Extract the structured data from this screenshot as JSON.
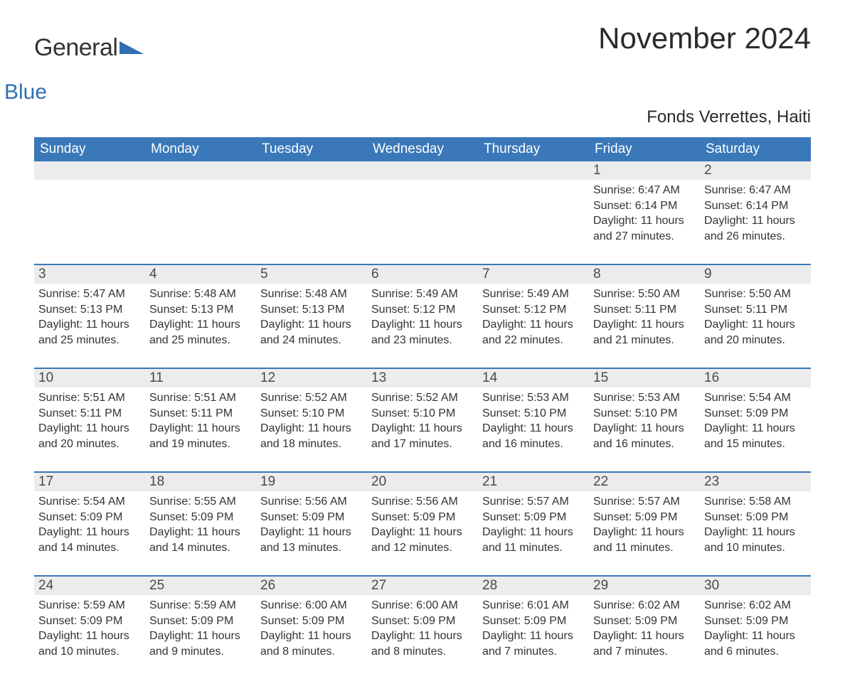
{
  "logo": {
    "main": "General",
    "sub": "Blue"
  },
  "title": "November 2024",
  "subtitle": "Fonds Verrettes, Haiti",
  "colors": {
    "header_bg": "#3a78b9",
    "header_text": "#ffffff",
    "daynum_bg": "#ececec",
    "daynum_text": "#4a4a4a",
    "body_text": "#333333",
    "rule": "#3a78b9",
    "logo_sub": "#2f6fb0",
    "background": "#ffffff"
  },
  "weekdays": [
    "Sunday",
    "Monday",
    "Tuesday",
    "Wednesday",
    "Thursday",
    "Friday",
    "Saturday"
  ],
  "weeks": [
    [
      {
        "day": "",
        "sunrise": "",
        "sunset": "",
        "daylight": "",
        "empty": true
      },
      {
        "day": "",
        "sunrise": "",
        "sunset": "",
        "daylight": "",
        "empty": true
      },
      {
        "day": "",
        "sunrise": "",
        "sunset": "",
        "daylight": "",
        "empty": true
      },
      {
        "day": "",
        "sunrise": "",
        "sunset": "",
        "daylight": "",
        "empty": true
      },
      {
        "day": "",
        "sunrise": "",
        "sunset": "",
        "daylight": "",
        "empty": true
      },
      {
        "day": "1",
        "sunrise": "Sunrise: 6:47 AM",
        "sunset": "Sunset: 6:14 PM",
        "daylight": "Daylight: 11 hours and 27 minutes."
      },
      {
        "day": "2",
        "sunrise": "Sunrise: 6:47 AM",
        "sunset": "Sunset: 6:14 PM",
        "daylight": "Daylight: 11 hours and 26 minutes."
      }
    ],
    [
      {
        "day": "3",
        "sunrise": "Sunrise: 5:47 AM",
        "sunset": "Sunset: 5:13 PM",
        "daylight": "Daylight: 11 hours and 25 minutes."
      },
      {
        "day": "4",
        "sunrise": "Sunrise: 5:48 AM",
        "sunset": "Sunset: 5:13 PM",
        "daylight": "Daylight: 11 hours and 25 minutes."
      },
      {
        "day": "5",
        "sunrise": "Sunrise: 5:48 AM",
        "sunset": "Sunset: 5:13 PM",
        "daylight": "Daylight: 11 hours and 24 minutes."
      },
      {
        "day": "6",
        "sunrise": "Sunrise: 5:49 AM",
        "sunset": "Sunset: 5:12 PM",
        "daylight": "Daylight: 11 hours and 23 minutes."
      },
      {
        "day": "7",
        "sunrise": "Sunrise: 5:49 AM",
        "sunset": "Sunset: 5:12 PM",
        "daylight": "Daylight: 11 hours and 22 minutes."
      },
      {
        "day": "8",
        "sunrise": "Sunrise: 5:50 AM",
        "sunset": "Sunset: 5:11 PM",
        "daylight": "Daylight: 11 hours and 21 minutes."
      },
      {
        "day": "9",
        "sunrise": "Sunrise: 5:50 AM",
        "sunset": "Sunset: 5:11 PM",
        "daylight": "Daylight: 11 hours and 20 minutes."
      }
    ],
    [
      {
        "day": "10",
        "sunrise": "Sunrise: 5:51 AM",
        "sunset": "Sunset: 5:11 PM",
        "daylight": "Daylight: 11 hours and 20 minutes."
      },
      {
        "day": "11",
        "sunrise": "Sunrise: 5:51 AM",
        "sunset": "Sunset: 5:11 PM",
        "daylight": "Daylight: 11 hours and 19 minutes."
      },
      {
        "day": "12",
        "sunrise": "Sunrise: 5:52 AM",
        "sunset": "Sunset: 5:10 PM",
        "daylight": "Daylight: 11 hours and 18 minutes."
      },
      {
        "day": "13",
        "sunrise": "Sunrise: 5:52 AM",
        "sunset": "Sunset: 5:10 PM",
        "daylight": "Daylight: 11 hours and 17 minutes."
      },
      {
        "day": "14",
        "sunrise": "Sunrise: 5:53 AM",
        "sunset": "Sunset: 5:10 PM",
        "daylight": "Daylight: 11 hours and 16 minutes."
      },
      {
        "day": "15",
        "sunrise": "Sunrise: 5:53 AM",
        "sunset": "Sunset: 5:10 PM",
        "daylight": "Daylight: 11 hours and 16 minutes."
      },
      {
        "day": "16",
        "sunrise": "Sunrise: 5:54 AM",
        "sunset": "Sunset: 5:09 PM",
        "daylight": "Daylight: 11 hours and 15 minutes."
      }
    ],
    [
      {
        "day": "17",
        "sunrise": "Sunrise: 5:54 AM",
        "sunset": "Sunset: 5:09 PM",
        "daylight": "Daylight: 11 hours and 14 minutes."
      },
      {
        "day": "18",
        "sunrise": "Sunrise: 5:55 AM",
        "sunset": "Sunset: 5:09 PM",
        "daylight": "Daylight: 11 hours and 14 minutes."
      },
      {
        "day": "19",
        "sunrise": "Sunrise: 5:56 AM",
        "sunset": "Sunset: 5:09 PM",
        "daylight": "Daylight: 11 hours and 13 minutes."
      },
      {
        "day": "20",
        "sunrise": "Sunrise: 5:56 AM",
        "sunset": "Sunset: 5:09 PM",
        "daylight": "Daylight: 11 hours and 12 minutes."
      },
      {
        "day": "21",
        "sunrise": "Sunrise: 5:57 AM",
        "sunset": "Sunset: 5:09 PM",
        "daylight": "Daylight: 11 hours and 11 minutes."
      },
      {
        "day": "22",
        "sunrise": "Sunrise: 5:57 AM",
        "sunset": "Sunset: 5:09 PM",
        "daylight": "Daylight: 11 hours and 11 minutes."
      },
      {
        "day": "23",
        "sunrise": "Sunrise: 5:58 AM",
        "sunset": "Sunset: 5:09 PM",
        "daylight": "Daylight: 11 hours and 10 minutes."
      }
    ],
    [
      {
        "day": "24",
        "sunrise": "Sunrise: 5:59 AM",
        "sunset": "Sunset: 5:09 PM",
        "daylight": "Daylight: 11 hours and 10 minutes."
      },
      {
        "day": "25",
        "sunrise": "Sunrise: 5:59 AM",
        "sunset": "Sunset: 5:09 PM",
        "daylight": "Daylight: 11 hours and 9 minutes."
      },
      {
        "day": "26",
        "sunrise": "Sunrise: 6:00 AM",
        "sunset": "Sunset: 5:09 PM",
        "daylight": "Daylight: 11 hours and 8 minutes."
      },
      {
        "day": "27",
        "sunrise": "Sunrise: 6:00 AM",
        "sunset": "Sunset: 5:09 PM",
        "daylight": "Daylight: 11 hours and 8 minutes."
      },
      {
        "day": "28",
        "sunrise": "Sunrise: 6:01 AM",
        "sunset": "Sunset: 5:09 PM",
        "daylight": "Daylight: 11 hours and 7 minutes."
      },
      {
        "day": "29",
        "sunrise": "Sunrise: 6:02 AM",
        "sunset": "Sunset: 5:09 PM",
        "daylight": "Daylight: 11 hours and 7 minutes."
      },
      {
        "day": "30",
        "sunrise": "Sunrise: 6:02 AM",
        "sunset": "Sunset: 5:09 PM",
        "daylight": "Daylight: 11 hours and 6 minutes."
      }
    ]
  ]
}
